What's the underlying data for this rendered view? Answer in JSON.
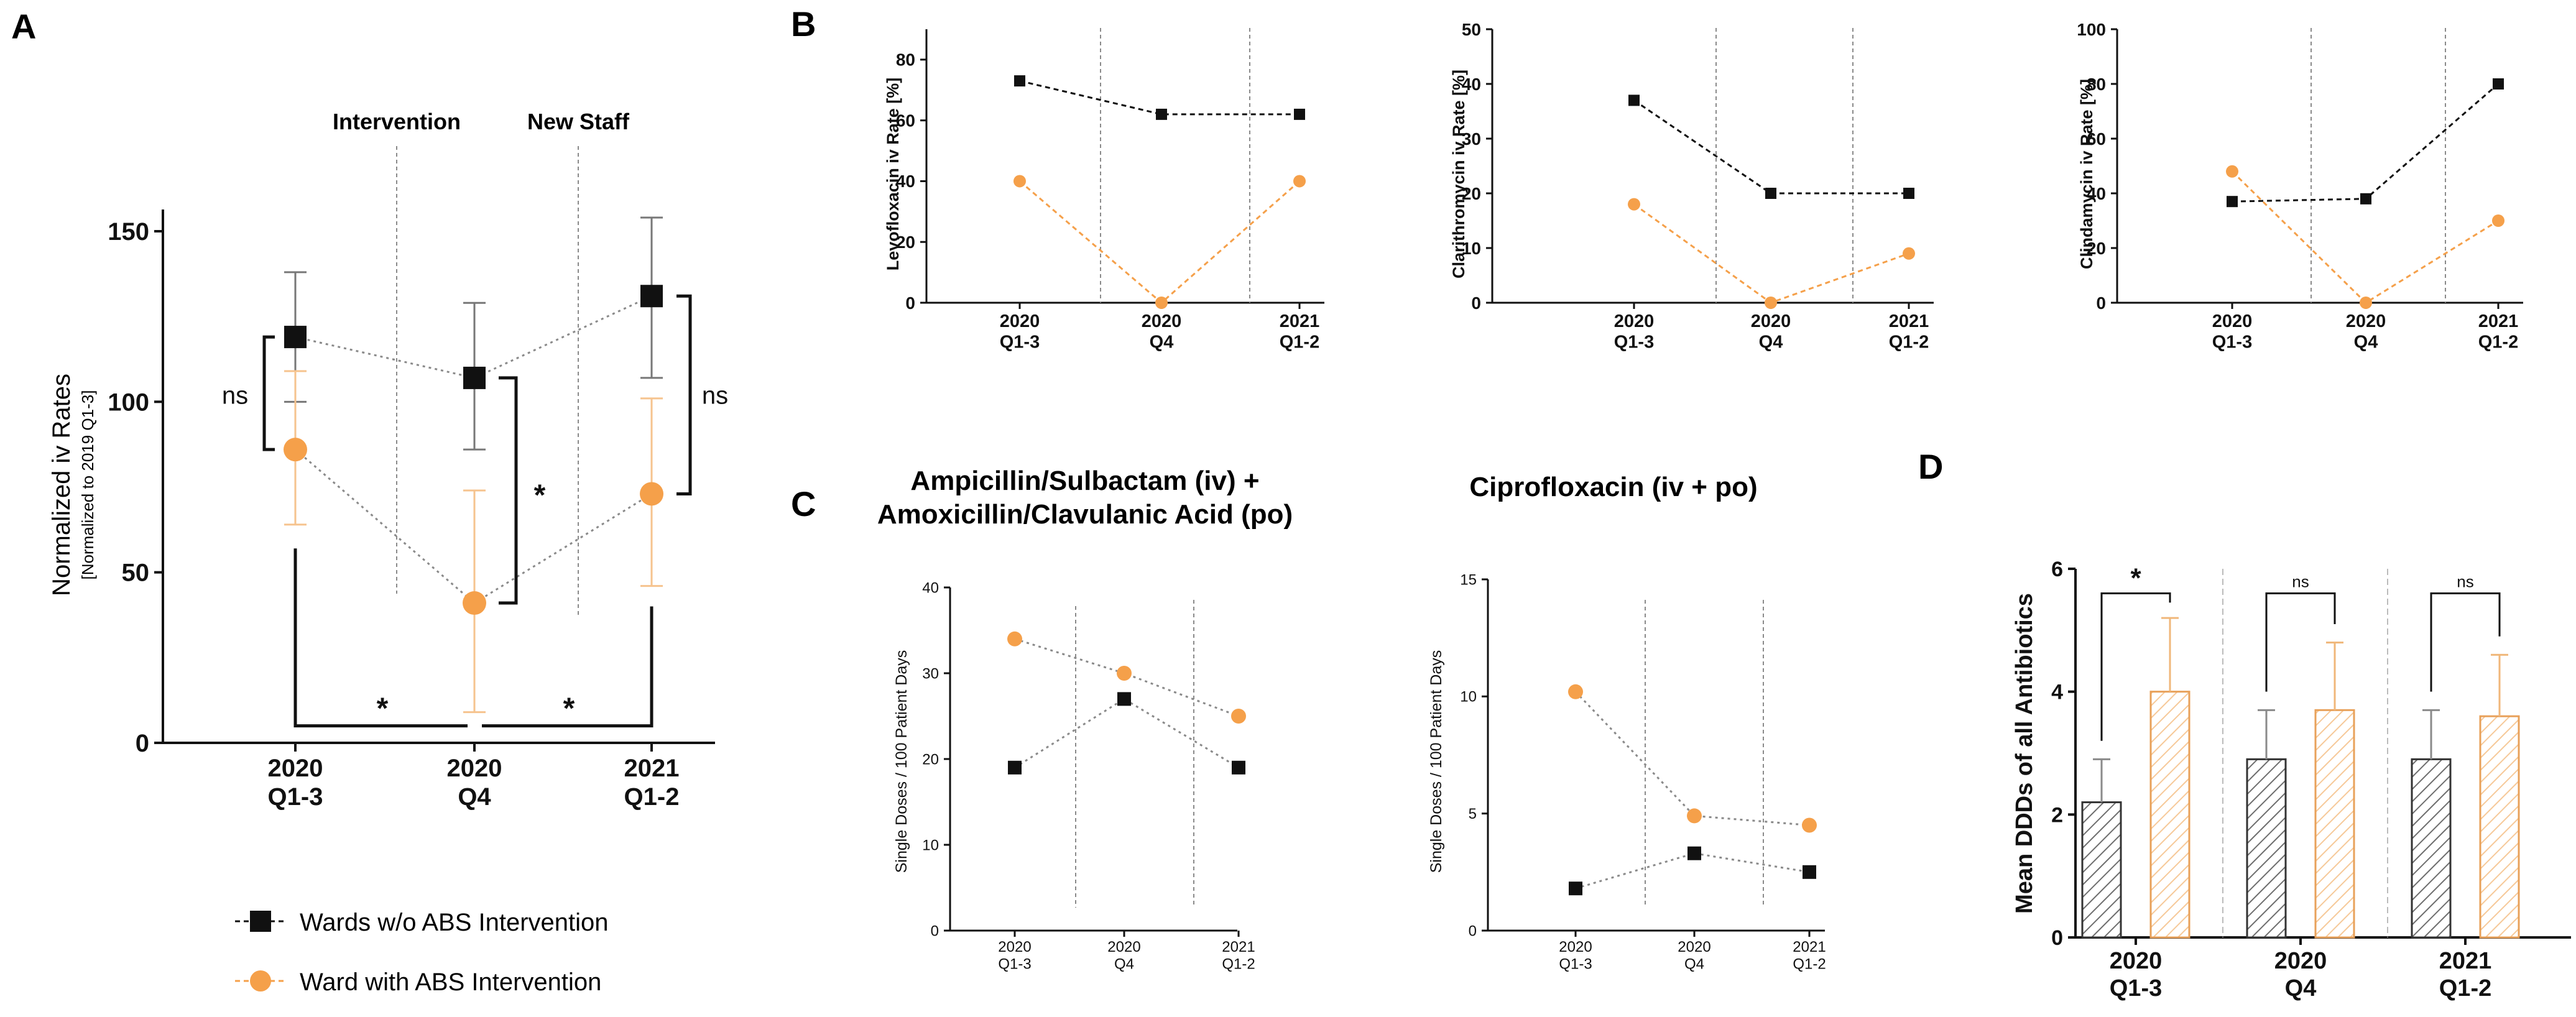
{
  "colors": {
    "black": "#111111",
    "orange": "#f5a04a",
    "grid": "#8a8a8a",
    "hatch_black": "#6e6e6e",
    "hatch_orange": "#f6c999"
  },
  "panel_letters": [
    "A",
    "B",
    "C",
    "D"
  ],
  "legend": [
    {
      "label": "Wards w/o ABS Intervention",
      "series": "black"
    },
    {
      "label": "Ward with ABS Intervention",
      "series": "orange"
    }
  ],
  "chart_data": [
    {
      "id": "A",
      "type": "line",
      "ylabel": "Normalized iv Rates",
      "ylabel_sub": "[Normalized to 2019 Q1-3]",
      "categories": [
        [
          "2020",
          "Q1-3"
        ],
        [
          "2020",
          "Q4"
        ],
        [
          "2021",
          "Q1-2"
        ]
      ],
      "ylim": [
        0,
        150
      ],
      "yticks": [
        0,
        50,
        100,
        150
      ],
      "dividers": [
        {
          "label": "Intervention",
          "position": 0.5
        },
        {
          "label": "New Staff",
          "position": 1.5
        }
      ],
      "series": [
        {
          "name": "Wards w/o ABS Intervention",
          "color": "black",
          "marker": "square",
          "values": [
            119,
            107,
            131
          ],
          "err_low": [
            100,
            86,
            107
          ],
          "err_high": [
            138,
            129,
            154
          ]
        },
        {
          "name": "Ward with ABS Intervention",
          "color": "orange",
          "marker": "circle",
          "values": [
            86,
            41,
            73
          ],
          "err_low": [
            64,
            9,
            46
          ],
          "err_high": [
            109,
            74,
            101
          ]
        }
      ],
      "significance": [
        {
          "label": "ns",
          "between": "series at 2020 Q1-3"
        },
        {
          "label": "*",
          "between": "series at 2020 Q4"
        },
        {
          "label": "ns",
          "between": "series at 2021 Q1-2"
        },
        {
          "label": "*",
          "between": "orange 2020 Q1-3 vs 2020 Q4"
        },
        {
          "label": "*",
          "between": "orange 2020 Q4 vs 2021 Q1-2"
        }
      ]
    },
    {
      "id": "B1",
      "type": "line",
      "ylabel": "Levofloxacin iv Rate [%]",
      "categories": [
        [
          "2020",
          "Q1-3"
        ],
        [
          "2020",
          "Q4"
        ],
        [
          "2021",
          "Q1-2"
        ]
      ],
      "ylim": [
        0,
        90
      ],
      "yticks": [
        0,
        20,
        40,
        60,
        80
      ],
      "series": [
        {
          "name": "Wards w/o ABS Intervention",
          "color": "black",
          "values": [
            73,
            62,
            62
          ]
        },
        {
          "name": "Ward with ABS Intervention",
          "color": "orange",
          "values": [
            40,
            0,
            40
          ]
        }
      ]
    },
    {
      "id": "B2",
      "type": "line",
      "ylabel": "Clarithromycin iv Rate [%]",
      "categories": [
        [
          "2020",
          "Q1-3"
        ],
        [
          "2020",
          "Q4"
        ],
        [
          "2021",
          "Q1-2"
        ]
      ],
      "ylim": [
        0,
        50
      ],
      "yticks": [
        0,
        10,
        20,
        30,
        40,
        50
      ],
      "series": [
        {
          "name": "Wards w/o ABS Intervention",
          "color": "black",
          "values": [
            37,
            20,
            20
          ]
        },
        {
          "name": "Ward with ABS Intervention",
          "color": "orange",
          "values": [
            18,
            0,
            9
          ]
        }
      ]
    },
    {
      "id": "B3",
      "type": "line",
      "ylabel": "Clindamycin iv Rate [%]",
      "categories": [
        [
          "2020",
          "Q1-3"
        ],
        [
          "2020",
          "Q4"
        ],
        [
          "2021",
          "Q1-2"
        ]
      ],
      "ylim": [
        0,
        100
      ],
      "yticks": [
        0,
        20,
        40,
        60,
        80,
        100
      ],
      "series": [
        {
          "name": "Wards w/o ABS Intervention",
          "color": "black",
          "values": [
            37,
            38,
            80
          ]
        },
        {
          "name": "Ward with ABS Intervention",
          "color": "orange",
          "values": [
            48,
            0,
            30
          ]
        }
      ]
    },
    {
      "id": "C1",
      "type": "line",
      "title": [
        "Ampicillin/Sulbactam (iv) +",
        "Amoxicillin/Clavulanic Acid (po)"
      ],
      "ylabel": "Single Doses / 100 Patient Days",
      "categories": [
        [
          "2020",
          "Q1-3"
        ],
        [
          "2020",
          "Q4"
        ],
        [
          "2021",
          "Q1-2"
        ]
      ],
      "ylim": [
        0,
        40
      ],
      "yticks": [
        0,
        10,
        20,
        30,
        40
      ],
      "series": [
        {
          "name": "Wards w/o ABS Intervention",
          "color": "black",
          "values": [
            19,
            27,
            19
          ]
        },
        {
          "name": "Ward with ABS Intervention",
          "color": "orange",
          "values": [
            34,
            30,
            25
          ]
        }
      ]
    },
    {
      "id": "C2",
      "type": "line",
      "title": [
        "Ciprofloxacin (iv + po)"
      ],
      "ylabel": "Single Doses / 100 Patient Days",
      "categories": [
        [
          "2020",
          "Q1-3"
        ],
        [
          "2020",
          "Q4"
        ],
        [
          "2021",
          "Q1-2"
        ]
      ],
      "ylim": [
        0,
        15
      ],
      "yticks": [
        0,
        5,
        10,
        15
      ],
      "series": [
        {
          "name": "Wards w/o ABS Intervention",
          "color": "black",
          "values": [
            1.8,
            3.3,
            2.5
          ]
        },
        {
          "name": "Ward with ABS Intervention",
          "color": "orange",
          "values": [
            10.2,
            4.9,
            4.5
          ]
        }
      ]
    },
    {
      "id": "D",
      "type": "bar",
      "ylabel": "Mean DDDs of all Antibiotics",
      "categories": [
        [
          "2020",
          "Q1-3"
        ],
        [
          "2020",
          "Q4"
        ],
        [
          "2021",
          "Q1-2"
        ]
      ],
      "ylim": [
        0,
        6
      ],
      "yticks": [
        0,
        2,
        4,
        6
      ],
      "series": [
        {
          "name": "Wards w/o ABS Intervention",
          "color": "black",
          "values": [
            2.2,
            2.9,
            2.9
          ],
          "err_high": [
            2.9,
            3.7,
            3.7
          ]
        },
        {
          "name": "Ward with ABS Intervention",
          "color": "orange",
          "values": [
            4.0,
            3.7,
            3.6
          ],
          "err_high": [
            5.2,
            4.8,
            4.6
          ]
        }
      ],
      "significance": [
        "*",
        "ns",
        "ns"
      ]
    }
  ]
}
